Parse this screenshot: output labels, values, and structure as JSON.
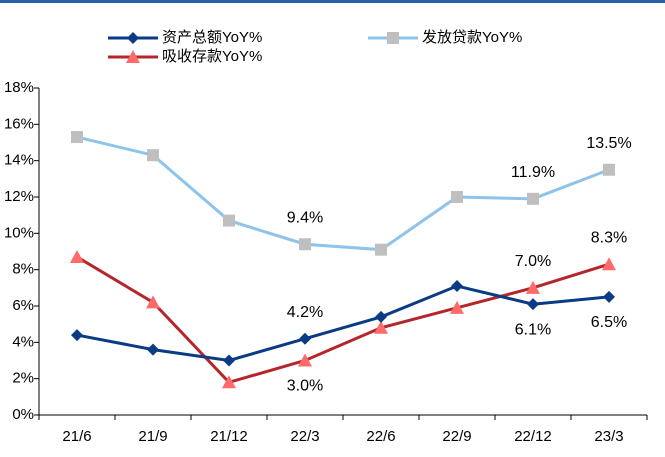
{
  "chart_data": {
    "type": "line",
    "categories": [
      "21/6",
      "21/9",
      "21/12",
      "22/3",
      "22/6",
      "22/9",
      "22/12",
      "23/3"
    ],
    "series": [
      {
        "name": "资产总额YoY%",
        "color": "#0b3b85",
        "marker": "diamond",
        "marker_color": "#0b3b85",
        "values": [
          4.4,
          3.6,
          3.0,
          4.2,
          5.4,
          7.1,
          6.1,
          6.5
        ],
        "value_labels": [
          null,
          null,
          null,
          "4.2%",
          null,
          null,
          "6.1%",
          "6.5%"
        ]
      },
      {
        "name": "发放贷款YoY%",
        "color": "#8ec3ea",
        "marker": "square",
        "marker_color": "#bfbfbf",
        "values": [
          15.3,
          14.3,
          10.7,
          9.4,
          9.1,
          12.0,
          11.9,
          13.5
        ],
        "value_labels": [
          null,
          null,
          null,
          "9.4%",
          null,
          null,
          "11.9%",
          "13.5%"
        ]
      },
      {
        "name": "吸收存款YoY%",
        "color": "#b5262b",
        "marker": "triangle",
        "marker_color": "#ff6b6b",
        "values": [
          8.7,
          6.2,
          1.8,
          3.0,
          4.8,
          5.9,
          7.0,
          8.3
        ],
        "value_labels": [
          null,
          null,
          null,
          "3.0%",
          null,
          null,
          "7.0%",
          "8.3%"
        ]
      }
    ],
    "ylim": [
      0,
      18
    ],
    "yticks": [
      {
        "value": 0,
        "label": "0%"
      },
      {
        "value": 2,
        "label": "2%"
      },
      {
        "value": 4,
        "label": "4%"
      },
      {
        "value": 6,
        "label": "6%"
      },
      {
        "value": 8,
        "label": "8%"
      },
      {
        "value": 10,
        "label": "10%"
      },
      {
        "value": 12,
        "label": "12%"
      },
      {
        "value": 14,
        "label": "14%"
      },
      {
        "value": 16,
        "label": "16%"
      },
      {
        "value": 18,
        "label": "18%"
      }
    ],
    "grid": false
  }
}
